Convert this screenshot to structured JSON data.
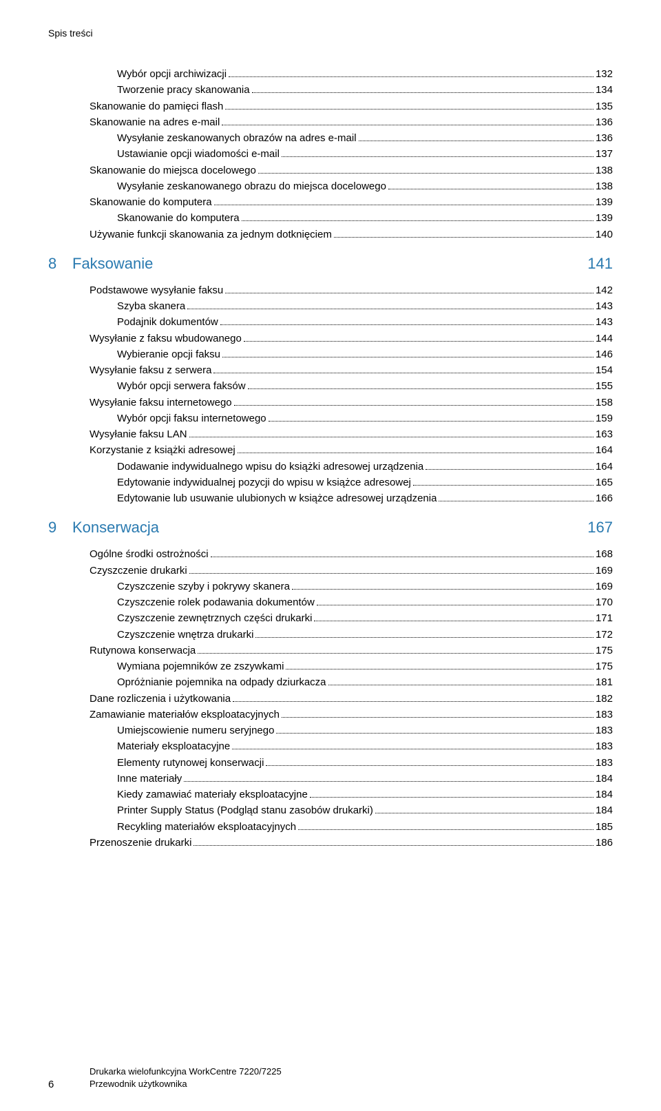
{
  "header": "Spis treści",
  "colors": {
    "text": "#000000",
    "accent": "#2a7ab0",
    "background": "#ffffff"
  },
  "pre_items": [
    {
      "label": "Wybór opcji archiwizacji",
      "page": "132",
      "indent": 2
    },
    {
      "label": "Tworzenie pracy skanowania",
      "page": "134",
      "indent": 2
    },
    {
      "label": "Skanowanie do pamięci flash",
      "page": "135",
      "indent": 1
    },
    {
      "label": "Skanowanie na adres e-mail",
      "page": "136",
      "indent": 1
    },
    {
      "label": "Wysyłanie zeskanowanych obrazów na adres e-mail",
      "page": "136",
      "indent": 2
    },
    {
      "label": "Ustawianie opcji wiadomości e-mail",
      "page": "137",
      "indent": 2
    },
    {
      "label": "Skanowanie do miejsca docelowego",
      "page": "138",
      "indent": 1
    },
    {
      "label": "Wysyłanie zeskanowanego obrazu do miejsca docelowego",
      "page": "138",
      "indent": 2
    },
    {
      "label": "Skanowanie do komputera",
      "page": "139",
      "indent": 1
    },
    {
      "label": "Skanowanie do komputera",
      "page": "139",
      "indent": 2
    },
    {
      "label": "Używanie funkcji skanowania za jednym dotknięciem",
      "page": "140",
      "indent": 1
    }
  ],
  "chapters": [
    {
      "num": "8",
      "title": "Faksowanie",
      "page": "141",
      "items": [
        {
          "label": "Podstawowe wysyłanie faksu",
          "page": "142",
          "indent": 1
        },
        {
          "label": "Szyba skanera",
          "page": "143",
          "indent": 2
        },
        {
          "label": "Podajnik dokumentów",
          "page": "143",
          "indent": 2
        },
        {
          "label": "Wysyłanie z faksu wbudowanego",
          "page": "144",
          "indent": 1
        },
        {
          "label": "Wybieranie opcji faksu",
          "page": "146",
          "indent": 2
        },
        {
          "label": "Wysyłanie faksu z serwera",
          "page": "154",
          "indent": 1
        },
        {
          "label": "Wybór opcji serwera faksów",
          "page": "155",
          "indent": 2
        },
        {
          "label": "Wysyłanie faksu internetowego",
          "page": "158",
          "indent": 1
        },
        {
          "label": "Wybór opcji faksu internetowego",
          "page": "159",
          "indent": 2
        },
        {
          "label": "Wysyłanie faksu LAN",
          "page": "163",
          "indent": 1
        },
        {
          "label": "Korzystanie z książki adresowej",
          "page": "164",
          "indent": 1
        },
        {
          "label": "Dodawanie indywidualnego wpisu do książki adresowej urządzenia",
          "page": "164",
          "indent": 2
        },
        {
          "label": "Edytowanie indywidualnej pozycji do wpisu w książce adresowej",
          "page": "165",
          "indent": 2
        },
        {
          "label": "Edytowanie lub usuwanie ulubionych w książce adresowej urządzenia",
          "page": "166",
          "indent": 2
        }
      ]
    },
    {
      "num": "9",
      "title": "Konserwacja",
      "page": "167",
      "items": [
        {
          "label": "Ogólne środki ostrożności",
          "page": "168",
          "indent": 1
        },
        {
          "label": "Czyszczenie drukarki",
          "page": "169",
          "indent": 1
        },
        {
          "label": "Czyszczenie szyby i pokrywy skanera",
          "page": "169",
          "indent": 2
        },
        {
          "label": "Czyszczenie rolek podawania dokumentów",
          "page": "170",
          "indent": 2
        },
        {
          "label": "Czyszczenie zewnętrznych części drukarki",
          "page": "171",
          "indent": 2
        },
        {
          "label": "Czyszczenie wnętrza drukarki",
          "page": "172",
          "indent": 2
        },
        {
          "label": "Rutynowa konserwacja",
          "page": "175",
          "indent": 1
        },
        {
          "label": "Wymiana pojemników ze zszywkami",
          "page": "175",
          "indent": 2
        },
        {
          "label": "Opróżnianie pojemnika na odpady dziurkacza",
          "page": "181",
          "indent": 2
        },
        {
          "label": "Dane rozliczenia i użytkowania",
          "page": "182",
          "indent": 1
        },
        {
          "label": "Zamawianie materiałów eksploatacyjnych",
          "page": "183",
          "indent": 1
        },
        {
          "label": "Umiejscowienie numeru seryjnego",
          "page": "183",
          "indent": 2
        },
        {
          "label": "Materiały eksploatacyjne",
          "page": "183",
          "indent": 2
        },
        {
          "label": "Elementy rutynowej konserwacji",
          "page": "183",
          "indent": 2
        },
        {
          "label": "Inne materiały",
          "page": "184",
          "indent": 2
        },
        {
          "label": "Kiedy zamawiać materiały eksploatacyjne",
          "page": "184",
          "indent": 2
        },
        {
          "label": "Printer Supply Status (Podgląd stanu zasobów drukarki)",
          "page": "184",
          "indent": 2
        },
        {
          "label": "Recykling materiałów eksploatacyjnych",
          "page": "185",
          "indent": 2
        },
        {
          "label": "Przenoszenie drukarki",
          "page": "186",
          "indent": 1
        }
      ]
    }
  ],
  "footer": {
    "pagenum": "6",
    "line1": "Drukarka wielofunkcyjna WorkCentre 7220/7225",
    "line2": "Przewodnik użytkownika"
  }
}
